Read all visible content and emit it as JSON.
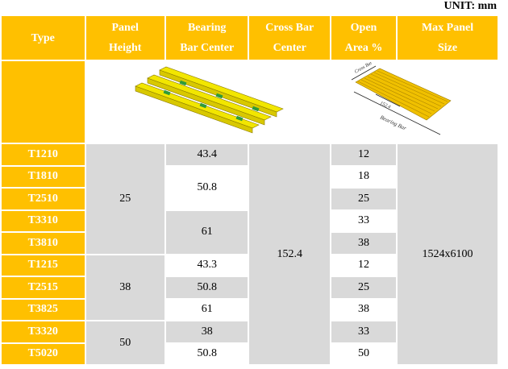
{
  "unit_label": "UNIT:  mm",
  "colors": {
    "header": "#FFC000",
    "shaded": "#D9D9D9",
    "white": "#FFFFFF"
  },
  "headers": [
    {
      "line1": "Type",
      "line2": ""
    },
    {
      "line1": "Panel",
      "line2": "Height"
    },
    {
      "line1": "Bearing",
      "line2": "Bar Center"
    },
    {
      "line1": "Cross Bar",
      "line2": "Center"
    },
    {
      "line1": "Open",
      "line2": "Area %"
    },
    {
      "line1": "Max Panel",
      "line2": "Size"
    }
  ],
  "images": {
    "left": "grating-isometric-illustration",
    "right": {
      "icon": "panel-dimension-diagram",
      "labels": [
        "Cross Bar",
        "152.4",
        "Bearing Bar"
      ]
    }
  },
  "types": [
    "T1210",
    "T1810",
    "T2510",
    "T3310",
    "T3810",
    "T1215",
    "T2515",
    "T3825",
    "T3320",
    "T5020"
  ],
  "panel_height": [
    {
      "value": "25",
      "rows": 5
    },
    {
      "value": "38",
      "rows": 3
    },
    {
      "value": "50",
      "rows": 2
    }
  ],
  "bearing_bar_center": [
    {
      "value": "43.4",
      "rows": 1,
      "shade": "g"
    },
    {
      "value": "50.8",
      "rows": 2,
      "shade": "w"
    },
    {
      "value": "61",
      "rows": 2,
      "shade": "g"
    },
    {
      "value": "43.3",
      "rows": 1,
      "shade": "w"
    },
    {
      "value": "50.8",
      "rows": 1,
      "shade": "g"
    },
    {
      "value": "61",
      "rows": 1,
      "shade": "w"
    },
    {
      "value": "38",
      "rows": 1,
      "shade": "g"
    },
    {
      "value": "50.8",
      "rows": 1,
      "shade": "w"
    }
  ],
  "cross_bar_center": "152.4",
  "open_area": [
    {
      "value": "12",
      "shade": "g"
    },
    {
      "value": "18",
      "shade": "w"
    },
    {
      "value": "25",
      "shade": "g"
    },
    {
      "value": "33",
      "shade": "w"
    },
    {
      "value": "38",
      "shade": "g"
    },
    {
      "value": "12",
      "shade": "w"
    },
    {
      "value": "25",
      "shade": "g"
    },
    {
      "value": "38",
      "shade": "w"
    },
    {
      "value": "33",
      "shade": "g"
    },
    {
      "value": "50",
      "shade": "w"
    }
  ],
  "max_panel_size": "1524x6100"
}
